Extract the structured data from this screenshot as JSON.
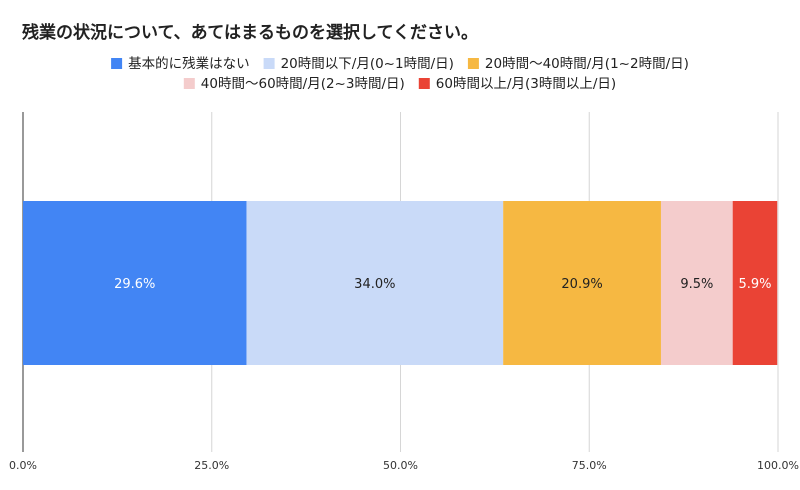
{
  "chart_data": {
    "type": "bar",
    "orientation": "horizontal",
    "stacked": true,
    "title": "残業の状況について、あてはまるものを選択してください。",
    "xlabel": "",
    "ylabel": "",
    "xlim": [
      0,
      100
    ],
    "ticks": [
      "0.0%",
      "25.0%",
      "50.0%",
      "75.0%",
      "100.0%"
    ],
    "tick_values": [
      0,
      25,
      50,
      75,
      100
    ],
    "grid": true,
    "legend_position": "top",
    "series": [
      {
        "name": "基本的に残業はない",
        "value": 29.6,
        "label": "29.6%",
        "color": "#4285f4",
        "label_color": "#ffffff"
      },
      {
        "name": "20時間以下/月(0~1時間/日)",
        "value": 34.0,
        "label": "34.0%",
        "color": "#c9daf8",
        "label_color": "#222222"
      },
      {
        "name": "20時間〜40時間/月(1~2時間/日)",
        "value": 20.9,
        "label": "20.9%",
        "color": "#f6b842",
        "label_color": "#222222"
      },
      {
        "name": "40時間〜60時間/月(2~3時間/日)",
        "value": 9.5,
        "label": "9.5%",
        "color": "#f4cccc",
        "label_color": "#222222"
      },
      {
        "name": "60時間以上/月(3時間以上/日)",
        "value": 5.9,
        "label": "5.9%",
        "color": "#ea4335",
        "label_color": "#ffffff"
      }
    ]
  }
}
